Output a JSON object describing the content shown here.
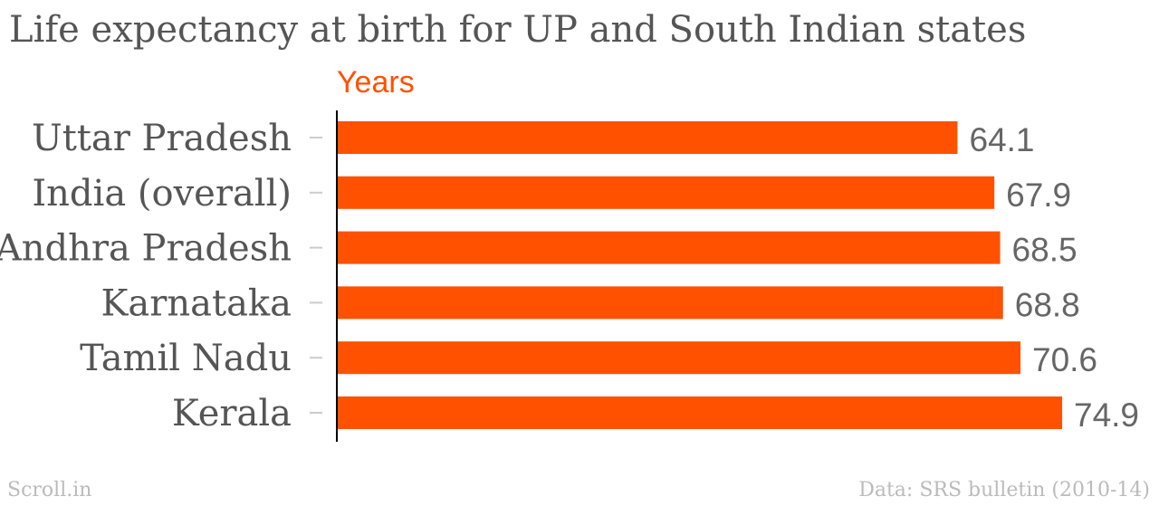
{
  "chart_data": {
    "type": "bar",
    "orientation": "horizontal",
    "title": "Life expectancy at birth for UP and South Indian states",
    "xlabel": "Years",
    "ylabel": "",
    "categories": [
      "Uttar Pradesh",
      "India (overall)",
      "Andhra Pradesh",
      "Karnataka",
      "Tamil Nadu",
      "Kerala"
    ],
    "values": [
      64.1,
      67.9,
      68.5,
      68.8,
      70.6,
      74.9
    ],
    "data_labels": [
      "64.1",
      "67.9",
      "68.5",
      "68.8",
      "70.6",
      "74.9"
    ],
    "xlim": [
      0,
      75
    ],
    "grid": false,
    "legend": "none"
  },
  "source_credit": "Scroll.in",
  "source_note": "Data: SRS bulletin (2010-14)",
  "colors": {
    "bar": "#ff5100",
    "axis_label": "#ff5100",
    "title": "#555555",
    "category_label": "#555555",
    "value_label": "#666666",
    "axis_line": "#000000",
    "tick": "#cccccc",
    "footer": "#bbbbbb"
  }
}
